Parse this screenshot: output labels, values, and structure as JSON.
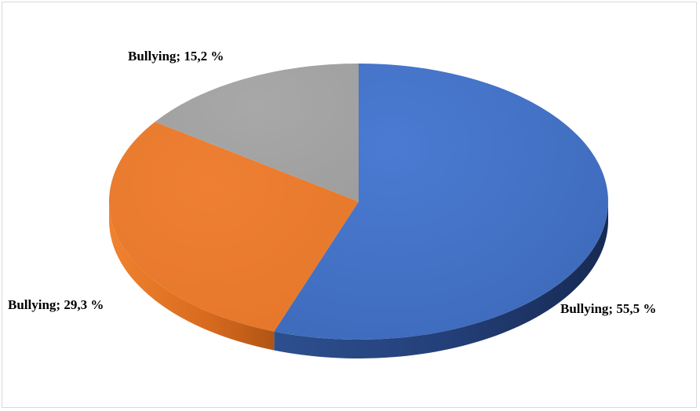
{
  "chart_data": {
    "type": "pie",
    "style": "3d",
    "title": "",
    "categories": [
      "Bullying",
      "Bullying",
      "Bullying"
    ],
    "values": [
      55.5,
      29.3,
      15.2
    ],
    "colors": [
      "#4472c4",
      "#ed7d31",
      "#a5a5a5"
    ],
    "labels": [
      "Bullying; 55,5 %",
      "Bullying; 29,3 %",
      "Bullying; 15,2 %"
    ],
    "legend": "none"
  }
}
